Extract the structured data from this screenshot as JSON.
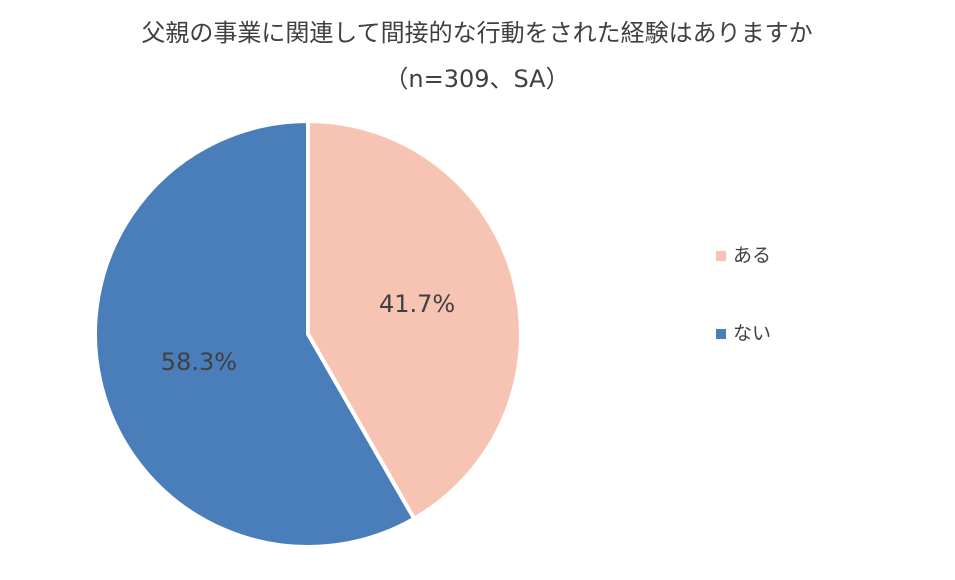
{
  "chart_data": {
    "type": "pie",
    "title": "父親の事業に関連して間接的な行動をされた経験はありますか",
    "subtitle": "（n=309、SA）",
    "categories": [
      "ある",
      "ない"
    ],
    "values": [
      41.7,
      58.3
    ],
    "value_labels": [
      "41.7%",
      "58.3%"
    ],
    "colors": [
      "#f7c3b3",
      "#4a7ebb"
    ],
    "legend": "right"
  }
}
